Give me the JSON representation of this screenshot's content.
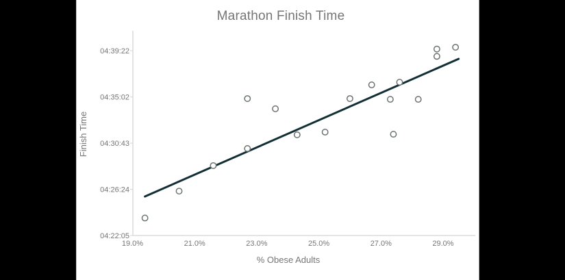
{
  "page": {
    "background": "#000000",
    "panel_background": "#ffffff"
  },
  "chart_data": {
    "type": "scatter",
    "title": "Marathon Finish Time",
    "xlabel": "% Obese Adults",
    "ylabel": "Finish Time",
    "legend": "none",
    "grid": "off",
    "xlim": [
      19.0,
      30.1
    ],
    "ylim": [
      "04:22:05",
      "04:39:22"
    ],
    "x_ticks": [
      {
        "label": "19.0%",
        "value": 19.0
      },
      {
        "label": "21.0%",
        "value": 21.0
      },
      {
        "label": "23.0%",
        "value": 23.0
      },
      {
        "label": "25.0%",
        "value": 25.0
      },
      {
        "label": "27.0%",
        "value": 27.0
      },
      {
        "label": "29.0%",
        "value": 29.0
      }
    ],
    "y_ticks": [
      {
        "label": "04:22:05",
        "seconds": 15725
      },
      {
        "label": "04:26:24",
        "seconds": 15984
      },
      {
        "label": "04:30:43",
        "seconds": 16243
      },
      {
        "label": "04:35:02",
        "seconds": 16502
      },
      {
        "label": "04:39:22",
        "seconds": 16762
      }
    ],
    "points": [
      {
        "x": 19.4,
        "time": "04:23:43",
        "seconds": 15823
      },
      {
        "x": 20.5,
        "time": "04:26:14",
        "seconds": 15974
      },
      {
        "x": 21.6,
        "time": "04:28:37",
        "seconds": 16117
      },
      {
        "x": 22.7,
        "time": "04:30:13",
        "seconds": 16213
      },
      {
        "x": 22.7,
        "time": "04:34:53",
        "seconds": 16493
      },
      {
        "x": 23.6,
        "time": "04:33:56",
        "seconds": 16436
      },
      {
        "x": 24.3,
        "time": "04:31:30",
        "seconds": 16290
      },
      {
        "x": 25.2,
        "time": "04:31:45",
        "seconds": 16305
      },
      {
        "x": 26.0,
        "time": "04:34:53",
        "seconds": 16493
      },
      {
        "x": 26.7,
        "time": "04:36:10",
        "seconds": 16570
      },
      {
        "x": 27.3,
        "time": "04:34:49",
        "seconds": 16489
      },
      {
        "x": 27.4,
        "time": "04:31:33",
        "seconds": 16293
      },
      {
        "x": 27.6,
        "time": "04:36:25",
        "seconds": 16585
      },
      {
        "x": 28.2,
        "time": "04:34:49",
        "seconds": 16489
      },
      {
        "x": 28.8,
        "time": "04:39:31",
        "seconds": 16771
      },
      {
        "x": 28.8,
        "time": "04:38:50",
        "seconds": 16730
      },
      {
        "x": 29.4,
        "time": "04:39:41",
        "seconds": 16781
      }
    ],
    "trendline": {
      "start": {
        "x": 19.4,
        "time": "04:25:44",
        "seconds": 15944
      },
      "end": {
        "x": 29.5,
        "time": "04:38:36",
        "seconds": 16716
      }
    },
    "colors": {
      "trend": "#132f36",
      "point_stroke": "#6c7373",
      "point_fill": "#ffffff",
      "axis_line": "#d4d4d4",
      "text": "#757575"
    }
  }
}
